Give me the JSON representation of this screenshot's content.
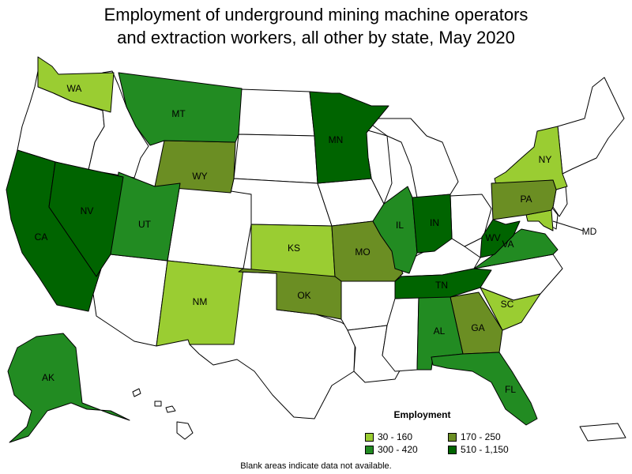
{
  "title_lines": [
    "Employment of underground mining machine operators",
    "and extraction workers, all other by state, May 2020"
  ],
  "legend": {
    "title": "Employment",
    "items": [
      {
        "label": "30 - 160",
        "color": "#9acd32"
      },
      {
        "label": "170 - 250",
        "color": "#6b8e23"
      },
      {
        "label": "300 - 420",
        "color": "#228b22"
      },
      {
        "label": "510 - 1,150",
        "color": "#006400"
      }
    ]
  },
  "footnote": "Blank areas indicate data not available.",
  "states": [
    {
      "abbr": "WA",
      "label": "WA",
      "range": "30 - 160"
    },
    {
      "abbr": "NY",
      "label": "NY",
      "range": "30 - 160"
    },
    {
      "abbr": "KS",
      "label": "KS",
      "range": "30 - 160"
    },
    {
      "abbr": "NM",
      "label": "NM",
      "range": "30 - 160"
    },
    {
      "abbr": "SC",
      "label": "SC",
      "range": "30 - 160"
    },
    {
      "abbr": "MD",
      "label": "MD",
      "range": "30 - 160"
    },
    {
      "abbr": "WY",
      "label": "WY",
      "range": "170 - 250"
    },
    {
      "abbr": "PA",
      "label": "PA",
      "range": "170 - 250"
    },
    {
      "abbr": "MO",
      "label": "MO",
      "range": "170 - 250"
    },
    {
      "abbr": "OK",
      "label": "OK",
      "range": "170 - 250"
    },
    {
      "abbr": "GA",
      "label": "GA",
      "range": "170 - 250"
    },
    {
      "abbr": "MT",
      "label": "MT",
      "range": "300 - 420"
    },
    {
      "abbr": "UT",
      "label": "UT",
      "range": "300 - 420"
    },
    {
      "abbr": "IL",
      "label": "IL",
      "range": "300 - 420"
    },
    {
      "abbr": "VA",
      "label": "VA",
      "range": "300 - 420"
    },
    {
      "abbr": "AL",
      "label": "AL",
      "range": "300 - 420"
    },
    {
      "abbr": "FL",
      "label": "FL",
      "range": "300 - 420"
    },
    {
      "abbr": "AK",
      "label": "AK",
      "range": "300 - 420"
    },
    {
      "abbr": "MN",
      "label": "MN",
      "range": "510 - 1,150"
    },
    {
      "abbr": "CA",
      "label": "CA",
      "range": "510 - 1,150"
    },
    {
      "abbr": "NV",
      "label": "NV",
      "range": "510 - 1,150"
    },
    {
      "abbr": "IN",
      "label": "IN",
      "range": "510 - 1,150"
    },
    {
      "abbr": "WV",
      "label": "WV",
      "range": "510 - 1,150"
    },
    {
      "abbr": "TN",
      "label": "TN",
      "range": "510 - 1,150"
    }
  ]
}
